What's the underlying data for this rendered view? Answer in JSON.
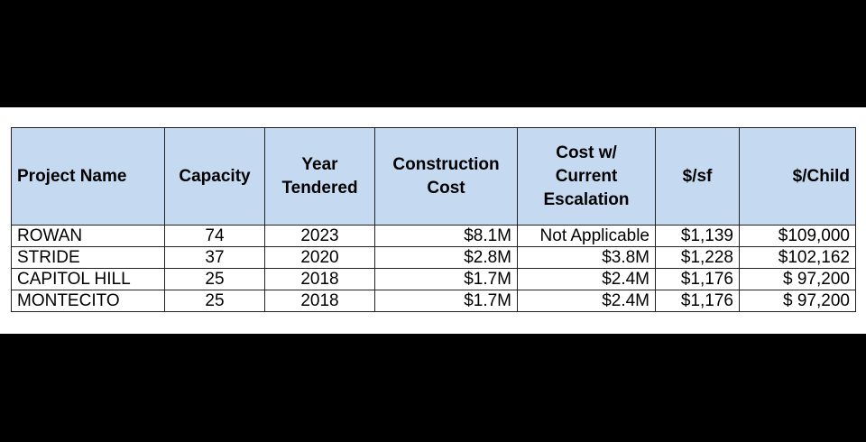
{
  "table": {
    "headers": [
      "Project Name",
      "Capacity",
      "Year Tendered",
      "Construction Cost",
      "Cost w/ Current Escalation",
      "$/sf",
      "$/Child"
    ],
    "rows": [
      {
        "project_name": "ROWAN",
        "capacity": "74",
        "year_tendered": "2023",
        "construction_cost": "$8.1M",
        "cost_w_current_escalation": "Not Applicable",
        "cost_per_sf": "$1,139",
        "cost_per_child": "$109,000"
      },
      {
        "project_name": "STRIDE",
        "capacity": "37",
        "year_tendered": "2020",
        "construction_cost": "$2.8M",
        "cost_w_current_escalation": "$3.8M",
        "cost_per_sf": "$1,228",
        "cost_per_child": "$102,162"
      },
      {
        "project_name": "CAPITOL HILL",
        "capacity": "25",
        "year_tendered": "2018",
        "construction_cost": "$1.7M",
        "cost_w_current_escalation": "$2.4M",
        "cost_per_sf": "$1,176",
        "cost_per_child": "$ 97,200"
      },
      {
        "project_name": "MONTECITO",
        "capacity": "25",
        "year_tendered": "2018",
        "construction_cost": "$1.7M",
        "cost_w_current_escalation": "$2.4M",
        "cost_per_sf": "$1,176",
        "cost_per_child": "$ 97,200"
      }
    ]
  }
}
